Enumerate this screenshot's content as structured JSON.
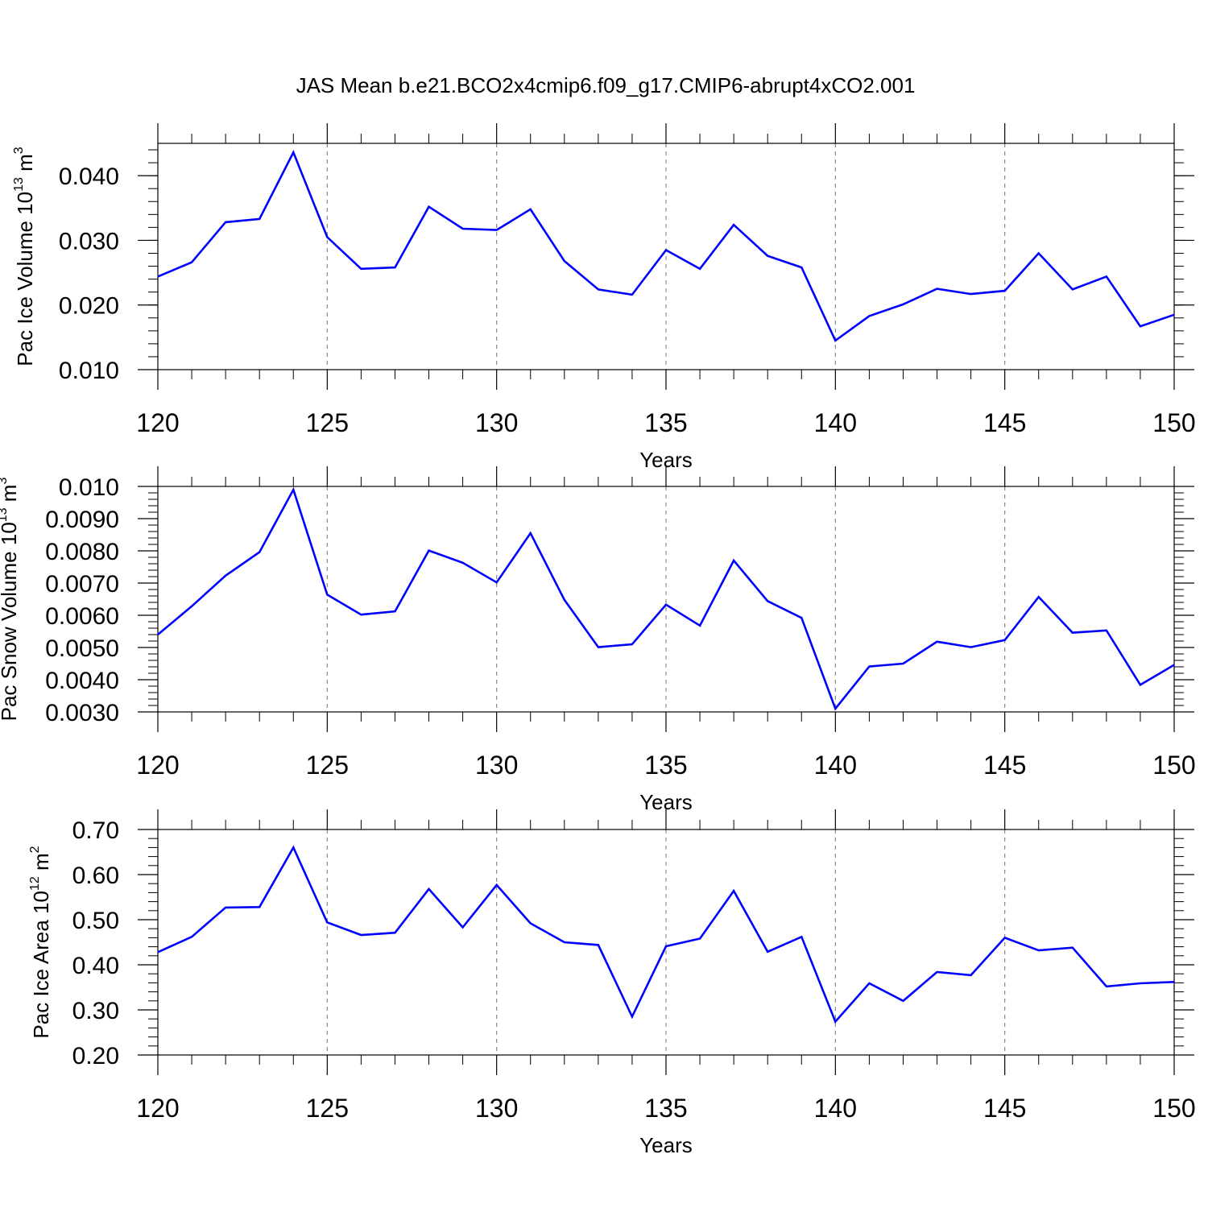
{
  "figure": {
    "title": "JAS Mean b.e21.BCO2x4cmip6.f09_g17.CMIP6-abrupt4xCO2.001"
  },
  "chart_data": [
    {
      "type": "line",
      "ylabel": "Pac Ice Volume 10",
      "ylabel_exp": "13",
      "ylabel_unit": " m",
      "ylabel_unit_exp": "3",
      "xlabel": "Years",
      "xlim": [
        120,
        150
      ],
      "ylim": [
        0.01,
        0.045
      ],
      "yticks": [
        0.01,
        0.02,
        0.03,
        0.04
      ],
      "ytick_labels": [
        "0.010",
        "0.020",
        "0.030",
        "0.040"
      ],
      "yminor_step": 0.002,
      "xticks": [
        120,
        125,
        130,
        135,
        140,
        145,
        150
      ],
      "xtick_labels": [
        "120",
        "125",
        "130",
        "135",
        "140",
        "145",
        "150"
      ],
      "grid_x": true,
      "line_color": "#0000ff",
      "x": [
        120,
        121,
        122,
        123,
        124,
        125,
        126,
        127,
        128,
        129,
        130,
        131,
        132,
        133,
        134,
        135,
        136,
        137,
        138,
        139,
        140,
        141,
        142,
        143,
        144,
        145,
        146,
        147,
        148,
        149,
        150
      ],
      "values": [
        0.0244,
        0.0266,
        0.0328,
        0.0333,
        0.0436,
        0.0305,
        0.0256,
        0.0258,
        0.0352,
        0.0318,
        0.0316,
        0.0348,
        0.0268,
        0.0224,
        0.0216,
        0.0285,
        0.0256,
        0.0324,
        0.0276,
        0.0258,
        0.0145,
        0.0183,
        0.0201,
        0.0225,
        0.0217,
        0.0222,
        0.028,
        0.0224,
        0.0244,
        0.0167,
        0.0185
      ]
    },
    {
      "type": "line",
      "ylabel": "Pac Snow Volume 10",
      "ylabel_exp": "13",
      "ylabel_unit": " m",
      "ylabel_unit_exp": "3",
      "xlabel": "Years",
      "xlim": [
        120,
        150
      ],
      "ylim": [
        0.003,
        0.01
      ],
      "yticks": [
        0.003,
        0.004,
        0.005,
        0.006,
        0.007,
        0.008,
        0.009,
        0.01
      ],
      "ytick_labels": [
        "0.0030",
        "0.0040",
        "0.0050",
        "0.0060",
        "0.0070",
        "0.0080",
        "0.0090",
        "0.010"
      ],
      "yminor_step": 0.0002,
      "xticks": [
        120,
        125,
        130,
        135,
        140,
        145,
        150
      ],
      "xtick_labels": [
        "120",
        "125",
        "130",
        "135",
        "140",
        "145",
        "150"
      ],
      "grid_x": true,
      "line_color": "#0000ff",
      "x": [
        120,
        121,
        122,
        123,
        124,
        125,
        126,
        127,
        128,
        129,
        130,
        131,
        132,
        133,
        134,
        135,
        136,
        137,
        138,
        139,
        140,
        141,
        142,
        143,
        144,
        145,
        146,
        147,
        148,
        149,
        150
      ],
      "values": [
        0.0054,
        0.00628,
        0.00723,
        0.00796,
        0.0099,
        0.00664,
        0.00602,
        0.00612,
        0.00801,
        0.00763,
        0.00702,
        0.00855,
        0.00648,
        0.00501,
        0.0051,
        0.00633,
        0.00568,
        0.0077,
        0.00644,
        0.00592,
        0.0031,
        0.00441,
        0.0045,
        0.00518,
        0.00501,
        0.00523,
        0.00657,
        0.00546,
        0.00553,
        0.00384,
        0.00446
      ]
    },
    {
      "type": "line",
      "ylabel": "Pac Ice Area 10",
      "ylabel_exp": "12",
      "ylabel_unit": " m",
      "ylabel_unit_exp": "2",
      "xlabel": "Years",
      "xlim": [
        120,
        150
      ],
      "ylim": [
        0.2,
        0.7
      ],
      "yticks": [
        0.2,
        0.3,
        0.4,
        0.5,
        0.6,
        0.7
      ],
      "ytick_labels": [
        "0.20",
        "0.30",
        "0.40",
        "0.50",
        "0.60",
        "0.70"
      ],
      "yminor_step": 0.02,
      "xticks": [
        120,
        125,
        130,
        135,
        140,
        145,
        150
      ],
      "xtick_labels": [
        "120",
        "125",
        "130",
        "135",
        "140",
        "145",
        "150"
      ],
      "grid_x": true,
      "line_color": "#0000ff",
      "x": [
        120,
        121,
        122,
        123,
        124,
        125,
        126,
        127,
        128,
        129,
        130,
        131,
        132,
        133,
        134,
        135,
        136,
        137,
        138,
        139,
        140,
        141,
        142,
        143,
        144,
        145,
        146,
        147,
        148,
        149,
        150
      ],
      "values": [
        0.428,
        0.462,
        0.527,
        0.528,
        0.66,
        0.494,
        0.466,
        0.471,
        0.568,
        0.483,
        0.577,
        0.492,
        0.45,
        0.444,
        0.285,
        0.441,
        0.458,
        0.564,
        0.429,
        0.462,
        0.274,
        0.359,
        0.32,
        0.384,
        0.377,
        0.46,
        0.432,
        0.438,
        0.352,
        0.359,
        0.362
      ]
    }
  ]
}
